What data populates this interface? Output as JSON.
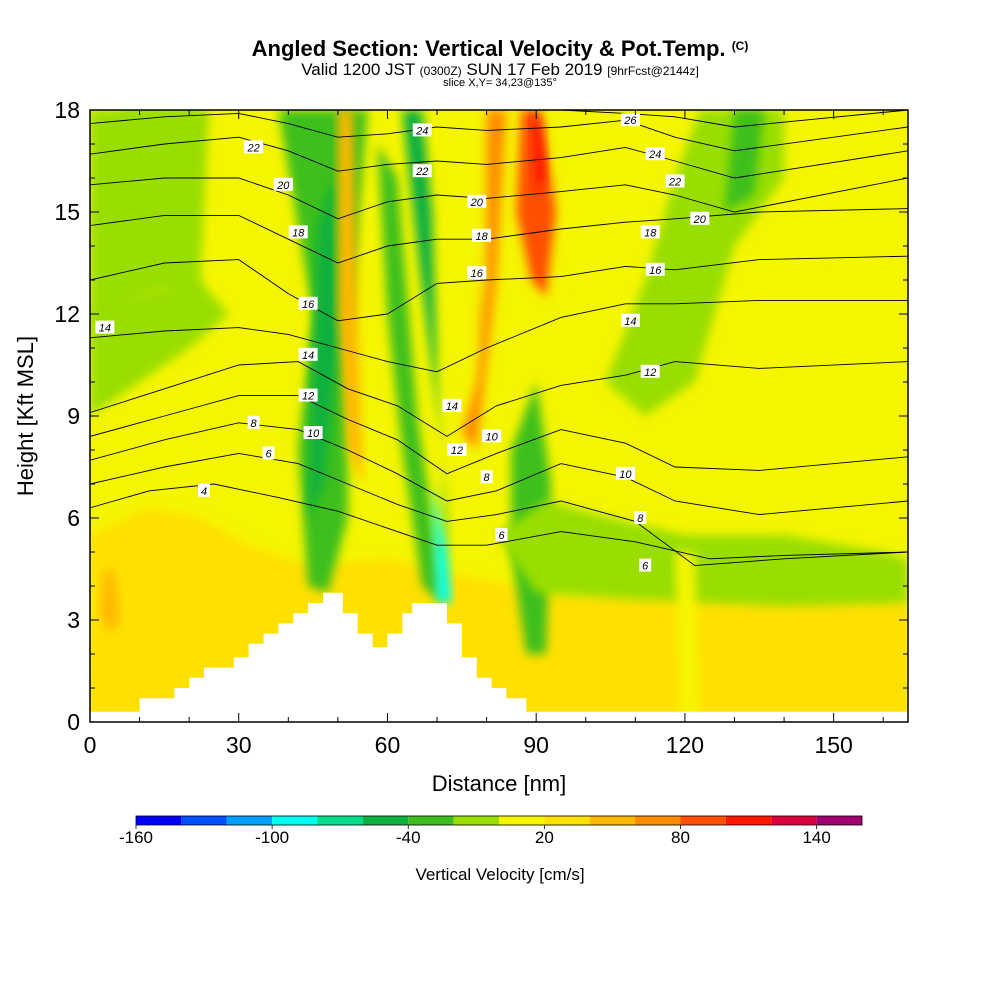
{
  "header": {
    "title": "Angled Section: Vertical Velocity & Pot.Temp.",
    "copyright": "(C)",
    "valid_prefix": "Valid 1200 JST",
    "utc_time": "(0300Z)",
    "valid_date": "SUN 17 Feb 2019",
    "forecast": "[9hrFcst@2144z]",
    "slice": "slice X,Y= 34,23@135°"
  },
  "chart_data": {
    "type": "heatmap",
    "xlabel": "Distance [nm]",
    "ylabel": "Height [Kft MSL]",
    "xlim": [
      0,
      165
    ],
    "ylim": [
      0,
      18
    ],
    "x_ticks": [
      0,
      30,
      60,
      90,
      120,
      150
    ],
    "y_ticks": [
      0,
      3,
      6,
      9,
      12,
      15,
      18
    ],
    "colorbar": {
      "label": "Vertical Velocity [cm/s]",
      "bins": [
        -160,
        -140,
        -120,
        -100,
        -80,
        -60,
        -40,
        -20,
        0,
        20,
        40,
        60,
        80,
        100,
        120,
        140,
        160
      ],
      "tick_labels": [
        "-160",
        "-100",
        "-40",
        "20",
        "80",
        "140"
      ],
      "tick_values": [
        -160,
        -100,
        -40,
        20,
        80,
        140
      ],
      "colors": [
        "#0000ff",
        "#0050ff",
        "#00a0ff",
        "#00ffee",
        "#00dd88",
        "#10b040",
        "#3cbf1e",
        "#99de00",
        "#f5f500",
        "#ffe000",
        "#ffb800",
        "#ff8c00",
        "#ff5000",
        "#ff1800",
        "#d8003c",
        "#a00070",
        "#6000a0"
      ]
    },
    "terrain_kft": [
      [
        0,
        0.3
      ],
      [
        10,
        0.3
      ],
      [
        10,
        0.7
      ],
      [
        17,
        0.7
      ],
      [
        17,
        1.0
      ],
      [
        20,
        1.0
      ],
      [
        20,
        1.3
      ],
      [
        23,
        1.3
      ],
      [
        23,
        1.6
      ],
      [
        29,
        1.6
      ],
      [
        29,
        1.9
      ],
      [
        32,
        1.9
      ],
      [
        32,
        2.3
      ],
      [
        35,
        2.3
      ],
      [
        35,
        2.6
      ],
      [
        38,
        2.6
      ],
      [
        38,
        2.9
      ],
      [
        41,
        2.9
      ],
      [
        41,
        3.2
      ],
      [
        44,
        3.2
      ],
      [
        44,
        3.5
      ],
      [
        47,
        3.5
      ],
      [
        47,
        3.8
      ],
      [
        51,
        3.8
      ],
      [
        51,
        3.2
      ],
      [
        54,
        3.2
      ],
      [
        54,
        2.6
      ],
      [
        57,
        2.6
      ],
      [
        57,
        2.2
      ],
      [
        60,
        2.2
      ],
      [
        60,
        2.6
      ],
      [
        63,
        2.6
      ],
      [
        63,
        3.2
      ],
      [
        65,
        3.2
      ],
      [
        65,
        3.5
      ],
      [
        72,
        3.5
      ],
      [
        72,
        2.9
      ],
      [
        75,
        2.9
      ],
      [
        75,
        1.9
      ],
      [
        78,
        1.9
      ],
      [
        78,
        1.3
      ],
      [
        81,
        1.3
      ],
      [
        81,
        1.0
      ],
      [
        84,
        1.0
      ],
      [
        84,
        0.7
      ],
      [
        88,
        0.7
      ],
      [
        88,
        0.3
      ],
      [
        165,
        0.3
      ]
    ],
    "isentropes": [
      {
        "label": "4",
        "points": [
          [
            0,
            6.3
          ],
          [
            12,
            6.8
          ],
          [
            25,
            7.0
          ],
          [
            38,
            6.6
          ],
          [
            50,
            6.2
          ],
          [
            60,
            5.7
          ],
          [
            70,
            5.2
          ],
          [
            80,
            5.2
          ],
          [
            95,
            5.6
          ],
          [
            110,
            5.3
          ],
          [
            125,
            4.8
          ],
          [
            140,
            4.9
          ],
          [
            165,
            5.0
          ]
        ]
      },
      {
        "label": "6",
        "points": [
          [
            0,
            7.0
          ],
          [
            15,
            7.5
          ],
          [
            30,
            7.9
          ],
          [
            42,
            7.6
          ],
          [
            52,
            7.0
          ],
          [
            62,
            6.4
          ],
          [
            72,
            5.9
          ],
          [
            82,
            6.1
          ],
          [
            95,
            6.5
          ],
          [
            110,
            5.9
          ],
          [
            122,
            4.6
          ],
          [
            140,
            4.8
          ],
          [
            165,
            5.0
          ]
        ]
      },
      {
        "label": "8",
        "points": [
          [
            0,
            7.7
          ],
          [
            15,
            8.3
          ],
          [
            30,
            8.8
          ],
          [
            42,
            8.6
          ],
          [
            52,
            8.0
          ],
          [
            62,
            7.3
          ],
          [
            72,
            6.5
          ],
          [
            82,
            6.8
          ],
          [
            95,
            7.6
          ],
          [
            108,
            7.2
          ],
          [
            118,
            6.5
          ],
          [
            135,
            6.1
          ],
          [
            165,
            6.5
          ]
        ]
      },
      {
        "label": "10",
        "points": [
          [
            0,
            8.4
          ],
          [
            15,
            9.0
          ],
          [
            30,
            9.6
          ],
          [
            42,
            9.6
          ],
          [
            52,
            8.9
          ],
          [
            62,
            8.3
          ],
          [
            72,
            7.3
          ],
          [
            82,
            7.9
          ],
          [
            95,
            8.6
          ],
          [
            108,
            8.2
          ],
          [
            118,
            7.5
          ],
          [
            135,
            7.4
          ],
          [
            165,
            7.8
          ]
        ]
      },
      {
        "label": "12",
        "points": [
          [
            0,
            9.1
          ],
          [
            15,
            9.8
          ],
          [
            30,
            10.5
          ],
          [
            42,
            10.6
          ],
          [
            52,
            9.8
          ],
          [
            62,
            9.3
          ],
          [
            72,
            8.4
          ],
          [
            82,
            9.3
          ],
          [
            95,
            9.9
          ],
          [
            108,
            10.2
          ],
          [
            118,
            10.6
          ],
          [
            135,
            10.4
          ],
          [
            165,
            10.6
          ]
        ]
      },
      {
        "label": "14",
        "points": [
          [
            0,
            11.3
          ],
          [
            15,
            11.5
          ],
          [
            30,
            11.6
          ],
          [
            40,
            11.4
          ],
          [
            50,
            11.0
          ],
          [
            60,
            10.6
          ],
          [
            70,
            10.3
          ],
          [
            80,
            11.0
          ],
          [
            95,
            11.9
          ],
          [
            108,
            12.3
          ],
          [
            118,
            12.3
          ],
          [
            135,
            12.4
          ],
          [
            165,
            12.4
          ]
        ]
      },
      {
        "label": "16",
        "points": [
          [
            0,
            13.0
          ],
          [
            15,
            13.5
          ],
          [
            30,
            13.6
          ],
          [
            40,
            12.6
          ],
          [
            50,
            11.8
          ],
          [
            60,
            12.0
          ],
          [
            70,
            12.9
          ],
          [
            80,
            13.0
          ],
          [
            95,
            13.1
          ],
          [
            108,
            13.4
          ],
          [
            118,
            13.3
          ],
          [
            135,
            13.6
          ],
          [
            165,
            13.7
          ]
        ]
      },
      {
        "label": "18",
        "points": [
          [
            0,
            14.6
          ],
          [
            15,
            14.9
          ],
          [
            30,
            14.9
          ],
          [
            40,
            14.2
          ],
          [
            50,
            13.5
          ],
          [
            60,
            14.0
          ],
          [
            70,
            14.2
          ],
          [
            80,
            14.2
          ],
          [
            95,
            14.5
          ],
          [
            108,
            14.7
          ],
          [
            118,
            14.8
          ],
          [
            135,
            15.0
          ],
          [
            165,
            15.1
          ]
        ]
      },
      {
        "label": "20",
        "points": [
          [
            0,
            15.8
          ],
          [
            15,
            16.0
          ],
          [
            30,
            16.0
          ],
          [
            40,
            15.5
          ],
          [
            50,
            14.8
          ],
          [
            60,
            15.3
          ],
          [
            70,
            15.5
          ],
          [
            80,
            15.4
          ],
          [
            95,
            15.6
          ],
          [
            108,
            15.8
          ],
          [
            118,
            15.5
          ],
          [
            130,
            15.0
          ],
          [
            165,
            16.0
          ]
        ]
      },
      {
        "label": "22",
        "points": [
          [
            0,
            16.7
          ],
          [
            15,
            17.0
          ],
          [
            30,
            17.2
          ],
          [
            40,
            16.8
          ],
          [
            50,
            16.2
          ],
          [
            60,
            16.4
          ],
          [
            70,
            16.5
          ],
          [
            80,
            16.4
          ],
          [
            95,
            16.6
          ],
          [
            108,
            16.9
          ],
          [
            118,
            16.5
          ],
          [
            130,
            16.0
          ],
          [
            165,
            16.8
          ]
        ]
      },
      {
        "label": "24",
        "points": [
          [
            0,
            17.6
          ],
          [
            15,
            17.8
          ],
          [
            30,
            17.9
          ],
          [
            40,
            17.6
          ],
          [
            50,
            17.2
          ],
          [
            60,
            17.3
          ],
          [
            70,
            17.5
          ],
          [
            80,
            17.4
          ],
          [
            95,
            17.5
          ],
          [
            108,
            17.7
          ],
          [
            118,
            17.2
          ],
          [
            130,
            16.8
          ],
          [
            165,
            17.5
          ]
        ]
      },
      {
        "label": "26",
        "points": [
          [
            20,
            18.0
          ],
          [
            40,
            18.0
          ],
          [
            60,
            18.0
          ],
          [
            80,
            18.0
          ],
          [
            95,
            18.0
          ],
          [
            108,
            17.9
          ],
          [
            118,
            17.8
          ],
          [
            130,
            17.5
          ],
          [
            165,
            18.0
          ]
        ]
      }
    ],
    "contour_labels": [
      {
        "text": "22",
        "x": 33,
        "y": 16.9
      },
      {
        "text": "20",
        "x": 39,
        "y": 15.8
      },
      {
        "text": "18",
        "x": 42,
        "y": 14.4
      },
      {
        "text": "16",
        "x": 44,
        "y": 12.3
      },
      {
        "text": "14",
        "x": 44,
        "y": 10.8
      },
      {
        "text": "12",
        "x": 44,
        "y": 9.6
      },
      {
        "text": "10",
        "x": 45,
        "y": 8.5
      },
      {
        "text": "8",
        "x": 33,
        "y": 8.8
      },
      {
        "text": "6",
        "x": 36,
        "y": 7.9
      },
      {
        "text": "4",
        "x": 23,
        "y": 6.8
      },
      {
        "text": "14",
        "x": 3,
        "y": 11.6
      },
      {
        "text": "24",
        "x": 67,
        "y": 17.4
      },
      {
        "text": "22",
        "x": 67,
        "y": 16.2
      },
      {
        "text": "20",
        "x": 78,
        "y": 15.3
      },
      {
        "text": "18",
        "x": 79,
        "y": 14.3
      },
      {
        "text": "16",
        "x": 78,
        "y": 13.2
      },
      {
        "text": "14",
        "x": 73,
        "y": 9.3
      },
      {
        "text": "12",
        "x": 74,
        "y": 8.0
      },
      {
        "text": "10",
        "x": 81,
        "y": 8.4
      },
      {
        "text": "8",
        "x": 80,
        "y": 7.2
      },
      {
        "text": "6",
        "x": 83,
        "y": 5.5
      },
      {
        "text": "26",
        "x": 109,
        "y": 17.7
      },
      {
        "text": "24",
        "x": 114,
        "y": 16.7
      },
      {
        "text": "22",
        "x": 118,
        "y": 15.9
      },
      {
        "text": "20",
        "x": 123,
        "y": 14.8
      },
      {
        "text": "18",
        "x": 113,
        "y": 14.4
      },
      {
        "text": "16",
        "x": 114,
        "y": 13.3
      },
      {
        "text": "14",
        "x": 109,
        "y": 11.8
      },
      {
        "text": "12",
        "x": 113,
        "y": 10.3
      },
      {
        "text": "10",
        "x": 108,
        "y": 7.3
      },
      {
        "text": "8",
        "x": 111,
        "y": 6.0
      },
      {
        "text": "6",
        "x": 112,
        "y": 4.6
      }
    ]
  }
}
